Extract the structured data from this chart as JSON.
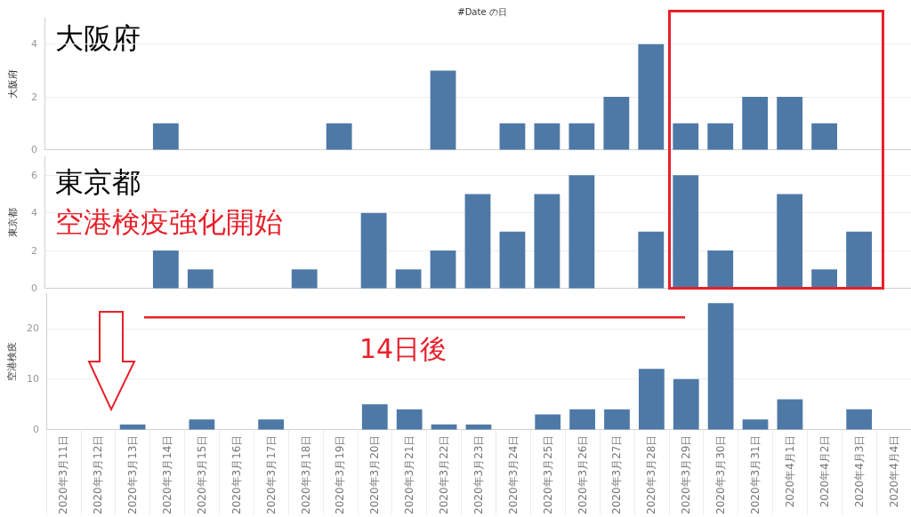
{
  "chart_data": [
    {
      "type": "bar",
      "title": "#Date の日",
      "ylabel": "大阪府",
      "categories": [
        "2020年3月11日",
        "2020年3月12日",
        "2020年3月13日",
        "2020年3月14日",
        "2020年3月15日",
        "2020年3月16日",
        "2020年3月17日",
        "2020年3月18日",
        "2020年3月19日",
        "2020年3月20日",
        "2020年3月21日",
        "2020年3月22日",
        "2020年3月23日",
        "2020年3月24日",
        "2020年3月25日",
        "2020年3月26日",
        "2020年3月27日",
        "2020年3月28日",
        "2020年3月29日",
        "2020年3月30日",
        "2020年3月31日",
        "2020年4月1日",
        "2020年4月2日",
        "2020年4月3日",
        "2020年4月4日"
      ],
      "values": [
        null,
        null,
        null,
        1,
        null,
        null,
        null,
        null,
        1,
        null,
        null,
        3,
        null,
        1,
        1,
        1,
        2,
        4,
        1,
        1,
        2,
        2,
        1,
        null,
        null
      ],
      "color": "#4e79a7",
      "ylim": [
        0,
        5
      ],
      "yticks": [
        0,
        2,
        4
      ],
      "grid": "y",
      "tick_labels": "y",
      "annotations": [
        "大阪府"
      ]
    },
    {
      "type": "bar",
      "ylabel": "東京都",
      "categories": [
        "2020年3月11日",
        "2020年3月12日",
        "2020年3月13日",
        "2020年3月14日",
        "2020年3月15日",
        "2020年3月16日",
        "2020年3月17日",
        "2020年3月18日",
        "2020年3月19日",
        "2020年3月20日",
        "2020年3月21日",
        "2020年3月22日",
        "2020年3月23日",
        "2020年3月24日",
        "2020年3月25日",
        "2020年3月26日",
        "2020年3月27日",
        "2020年3月28日",
        "2020年3月29日",
        "2020年3月30日",
        "2020年3月31日",
        "2020年4月1日",
        "2020年4月2日",
        "2020年4月3日",
        "2020年4月4日"
      ],
      "values": [
        null,
        null,
        null,
        2,
        1,
        null,
        null,
        1,
        null,
        4,
        1,
        2,
        5,
        3,
        5,
        6,
        null,
        3,
        6,
        2,
        null,
        5,
        1,
        3,
        null
      ],
      "color": "#4e79a7",
      "ylim": [
        0,
        7
      ],
      "yticks": [
        0,
        2,
        4,
        6
      ],
      "grid": "y",
      "tick_labels": "y",
      "annotations": [
        "東京都",
        "空港検疫強化開始"
      ]
    },
    {
      "type": "bar",
      "ylabel": "空港検疫",
      "categories": [
        "2020年3月11日",
        "2020年3月12日",
        "2020年3月13日",
        "2020年3月14日",
        "2020年3月15日",
        "2020年3月16日",
        "2020年3月17日",
        "2020年3月18日",
        "2020年3月19日",
        "2020年3月20日",
        "2020年3月21日",
        "2020年3月22日",
        "2020年3月23日",
        "2020年3月24日",
        "2020年3月25日",
        "2020年3月26日",
        "2020年3月27日",
        "2020年3月28日",
        "2020年3月29日",
        "2020年3月30日",
        "2020年3月31日",
        "2020年4月1日",
        "2020年4月2日",
        "2020年4月3日",
        "2020年4月4日"
      ],
      "values": [
        null,
        null,
        1,
        null,
        2,
        null,
        2,
        null,
        null,
        5,
        4,
        1,
        1,
        null,
        3,
        4,
        4,
        12,
        10,
        25,
        2,
        6,
        null,
        4,
        null
      ],
      "color": "#4e79a7",
      "ylim": [
        0,
        27
      ],
      "yticks": [
        0,
        10,
        20
      ],
      "grid": "y",
      "annotations": [
        "14日後"
      ]
    }
  ]
}
